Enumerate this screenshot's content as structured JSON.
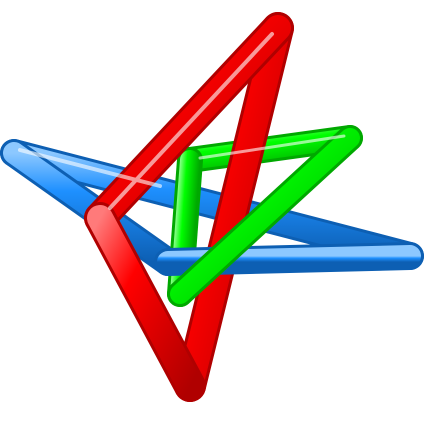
{
  "image": {
    "background": "#ffffff"
  },
  "triangles": {
    "red": {
      "color": "#ff0000",
      "shadow": "#b00000",
      "highlight": "#ff7a7a"
    },
    "green": {
      "color": "#00ff00",
      "shadow": "#00a800",
      "highlight": "#8cff8c"
    },
    "blue": {
      "color": "#1e90ff",
      "shadow": "#0d5fb3",
      "highlight": "#8cc8ff"
    }
  }
}
